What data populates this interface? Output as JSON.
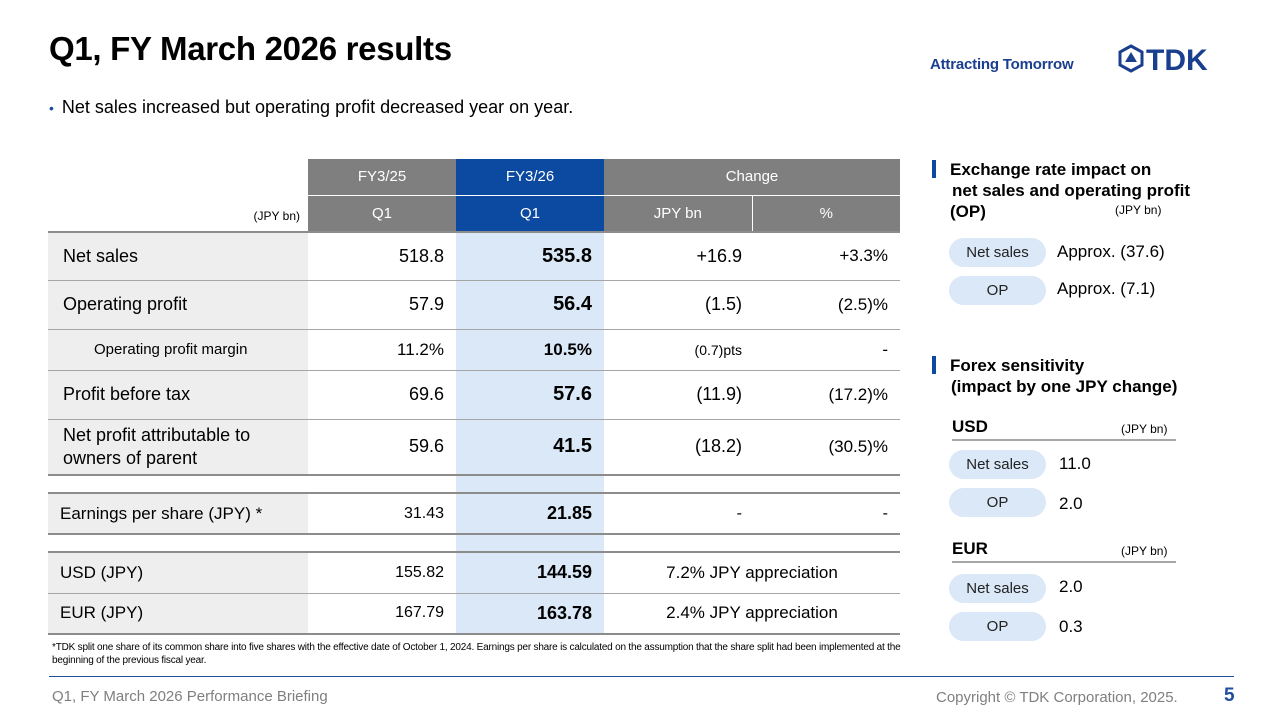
{
  "header": {
    "title": "Q1, FY March 2026 results",
    "tagline": "Attracting Tomorrow",
    "logo_text": "TDK",
    "bullet": "Net sales increased but operating profit decreased year on year."
  },
  "table": {
    "headers": {
      "prev_year": "FY3/25",
      "curr_year": "FY3/26",
      "change": "Change",
      "unit": "(JPY bn)",
      "prev_q": "Q1",
      "curr_q": "Q1",
      "chg_amount": "JPY bn",
      "chg_pct": "%"
    },
    "rows": [
      {
        "label": "Net sales",
        "prev": "518.8",
        "curr": "535.8",
        "change": "+16.9",
        "pct": "+3.3%"
      },
      {
        "label": "Operating profit",
        "prev": "57.9",
        "curr": "56.4",
        "change": "(1.5)",
        "pct": "(2.5)%"
      },
      {
        "label": "Operating profit margin",
        "prev": "11.2%",
        "curr": "10.5%",
        "change": "(0.7)pts",
        "pct": "-"
      },
      {
        "label": "Profit before tax",
        "prev": "69.6",
        "curr": "57.6",
        "change": "(11.9)",
        "pct": "(17.2)%"
      },
      {
        "label": "Net profit attributable to",
        "label2": "owners of parent",
        "prev": "59.6",
        "curr": "41.5",
        "change": "(18.2)",
        "pct": "(30.5)%"
      },
      {
        "label": "Earnings per share (JPY) *",
        "prev": "31.43",
        "curr": "21.85",
        "change": "-",
        "pct": "-"
      },
      {
        "label": "USD (JPY)",
        "prev": "155.82",
        "curr": "144.59",
        "change": "7.2% JPY appreciation"
      },
      {
        "label": "EUR (JPY)",
        "prev": "167.79",
        "curr": "163.78",
        "change": "2.4% JPY appreciation"
      }
    ],
    "footnote": "*TDK split one share of its common share into five shares with the effective date of October 1, 2024. Earnings per share is calculated on the assumption that the share split had been implemented at the beginning of the previous fiscal year."
  },
  "exchange_impact": {
    "heading_line1": "Exchange rate impact on",
    "heading_line2": "net sales and operating profit",
    "heading_line3": "(OP)",
    "unit": "(JPY bn)",
    "items": [
      {
        "label": "Net sales",
        "value": "Approx. (37.6)"
      },
      {
        "label": "OP",
        "value": "Approx. (7.1)"
      }
    ]
  },
  "forex_sensitivity": {
    "heading_line1": "Forex sensitivity",
    "heading_line2": "(impact by one JPY change)",
    "usd": {
      "currency": "USD",
      "unit": "(JPY bn)",
      "items": [
        {
          "label": "Net sales",
          "value": "11.0"
        },
        {
          "label": "OP",
          "value": "2.0"
        }
      ]
    },
    "eur": {
      "currency": "EUR",
      "unit": "(JPY bn)",
      "items": [
        {
          "label": "Net sales",
          "value": "2.0"
        },
        {
          "label": "OP",
          "value": "0.3"
        }
      ]
    }
  },
  "footer": {
    "left": "Q1, FY March 2026 Performance Briefing",
    "right": "Copyright  © TDK Corporation, 2025.",
    "page_number": "5"
  },
  "colors": {
    "brand_blue": "#0b4aa0",
    "highlight": "#dbe8f7",
    "header_gray": "#7f7f7f"
  }
}
